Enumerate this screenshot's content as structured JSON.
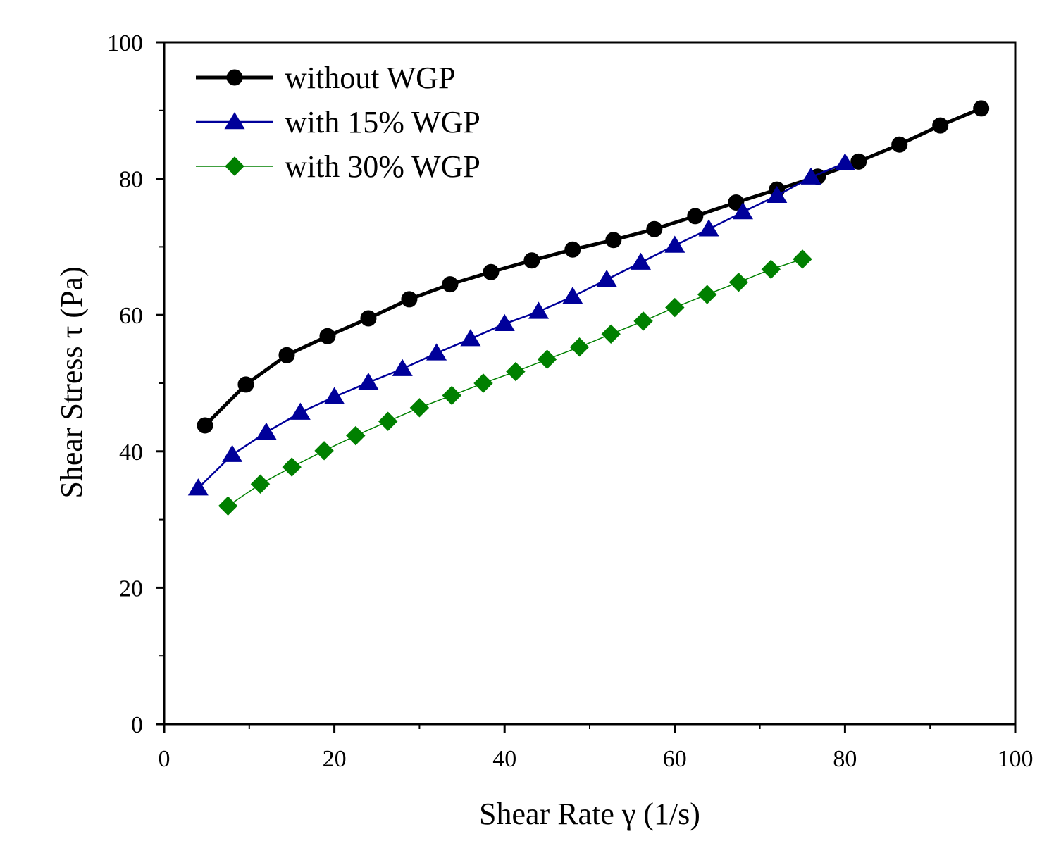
{
  "chart_data": {
    "type": "line",
    "title": "",
    "xlabel": "Shear Rate γ (1/s)",
    "ylabel": "Shear Stress τ (Pa)",
    "xlim": [
      0,
      100
    ],
    "ylim": [
      0,
      100
    ],
    "xticks": [
      "0",
      "20",
      "40",
      "60",
      "80",
      "100"
    ],
    "yticks": [
      "0",
      "20",
      "40",
      "60",
      "80",
      "100"
    ],
    "grid": false,
    "legend_position": "top-left",
    "series": [
      {
        "name": "without WGP",
        "color": "#000000",
        "marker": "circle",
        "line_weight": "thick",
        "x": [
          4.8,
          9.6,
          14.4,
          19.2,
          24.0,
          28.8,
          33.6,
          38.4,
          43.2,
          48.0,
          52.8,
          57.6,
          62.4,
          67.2,
          72.0,
          76.8,
          81.6,
          86.4,
          91.2,
          96.0
        ],
        "y": [
          43.8,
          49.8,
          54.1,
          56.9,
          59.5,
          62.3,
          64.5,
          66.3,
          68.0,
          69.6,
          71.0,
          72.6,
          74.5,
          76.5,
          78.4,
          80.3,
          82.5,
          85.0,
          87.8,
          90.3
        ]
      },
      {
        "name": "with 15% WGP",
        "color": "#00009a",
        "marker": "triangle",
        "line_weight": "medium",
        "x": [
          4.0,
          8.0,
          12.0,
          16.0,
          20.0,
          24.0,
          28.0,
          32.0,
          36.0,
          40.0,
          44.0,
          48.0,
          52.0,
          56.0,
          60.0,
          64.0,
          68.0,
          72.0,
          76.0,
          80.0
        ],
        "y": [
          34.6,
          39.5,
          42.8,
          45.7,
          48.0,
          50.1,
          52.1,
          54.4,
          56.5,
          58.7,
          60.5,
          62.7,
          65.2,
          67.7,
          70.2,
          72.6,
          75.1,
          77.5,
          80.2,
          82.3
        ]
      },
      {
        "name": "with 30% WGP",
        "color": "#008000",
        "marker": "diamond",
        "line_weight": "thin",
        "x": [
          7.5,
          11.3,
          15.0,
          18.8,
          22.5,
          26.3,
          30.0,
          33.8,
          37.5,
          41.3,
          45.0,
          48.8,
          52.5,
          56.3,
          60.0,
          63.8,
          67.5,
          71.3,
          75.0
        ],
        "y": [
          32.0,
          35.2,
          37.7,
          40.1,
          42.3,
          44.4,
          46.4,
          48.2,
          50.0,
          51.7,
          53.5,
          55.3,
          57.2,
          59.1,
          61.1,
          63.0,
          64.8,
          66.7,
          68.2
        ]
      }
    ]
  }
}
